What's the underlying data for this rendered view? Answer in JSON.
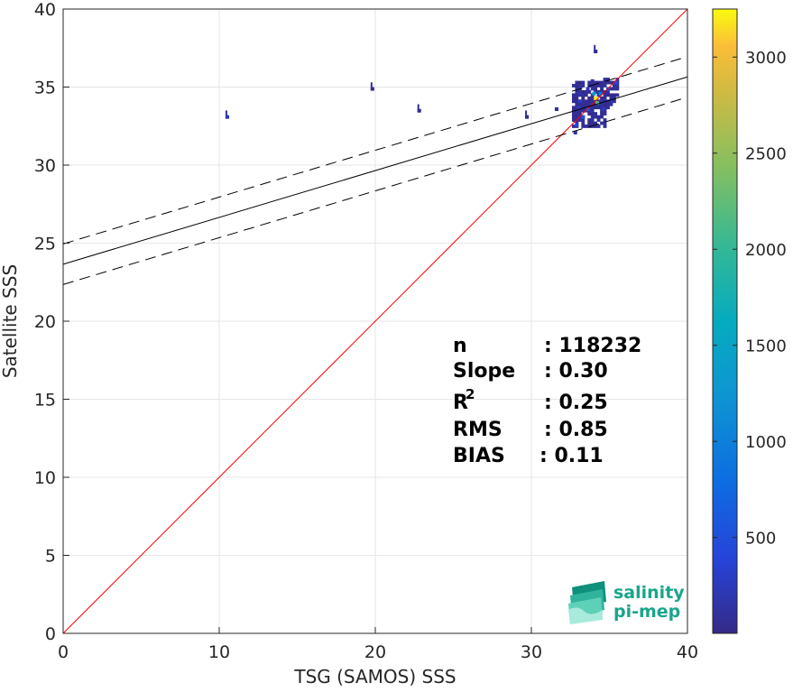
{
  "chart_data": {
    "type": "heatmap",
    "title": "",
    "xlabel": "TSG (SAMOS) SSS",
    "ylabel": "Satellite SSS",
    "xlim": [
      0,
      40
    ],
    "ylim": [
      0,
      40
    ],
    "xticks": [
      "0",
      "10",
      "20",
      "30",
      "40"
    ],
    "yticks": [
      "0",
      "5",
      "10",
      "15",
      "20",
      "25",
      "30",
      "35",
      "40"
    ],
    "grid": true,
    "colorbar": {
      "range": [
        1,
        3250
      ],
      "ticks": [
        "500",
        "1000",
        "1500",
        "2000",
        "2500",
        "3000"
      ],
      "colormap": "parula"
    },
    "lines": {
      "identity": {
        "slope": 1.0,
        "intercept": 0.0,
        "color": "#ff0000"
      },
      "regression": {
        "slope": 0.3,
        "intercept": 23.65,
        "color": "#000000"
      },
      "regression_upper": {
        "slope": 0.3,
        "intercept": 24.95,
        "color": "#000000",
        "dash": true
      },
      "regression_lower": {
        "slope": 0.3,
        "intercept": 22.35,
        "color": "#000000",
        "dash": true
      }
    },
    "density_clusters": [
      {
        "x": 34.0,
        "y": 34.2,
        "count": 3200
      },
      {
        "x": 34.1,
        "y": 33.9,
        "count": 2200
      },
      {
        "x": 33.9,
        "y": 34.5,
        "count": 1400
      },
      {
        "x": 34.3,
        "y": 34.5,
        "count": 900
      },
      {
        "x": 33.5,
        "y": 33.5,
        "count": 700
      },
      {
        "x": 33.2,
        "y": 33.0,
        "count": 550
      },
      {
        "x": 34.8,
        "y": 34.8,
        "count": 500
      },
      {
        "x": 35.3,
        "y": 35.2,
        "count": 450
      },
      {
        "x": 32.8,
        "y": 32.5,
        "count": 400
      },
      {
        "x": 33.0,
        "y": 34.0,
        "count": 300
      },
      {
        "x": 34.5,
        "y": 33.5,
        "count": 250
      },
      {
        "x": 32.9,
        "y": 33.6,
        "count": 220
      },
      {
        "x": 33.5,
        "y": 34.8,
        "count": 200
      },
      {
        "x": 35.0,
        "y": 34.0,
        "count": 150
      },
      {
        "x": 32.7,
        "y": 32.0,
        "count": 140
      },
      {
        "x": 33.8,
        "y": 35.3,
        "count": 120
      },
      {
        "x": 10.4,
        "y": 33.0,
        "count": 200
      },
      {
        "x": 19.7,
        "y": 34.8,
        "count": 60
      },
      {
        "x": 22.7,
        "y": 33.4,
        "count": 60
      },
      {
        "x": 29.6,
        "y": 33.0,
        "count": 80
      },
      {
        "x": 31.5,
        "y": 33.5,
        "count": 90
      },
      {
        "x": 34.0,
        "y": 37.2,
        "count": 80
      }
    ]
  },
  "stats": [
    {
      "label": "n",
      "value": ": 118232"
    },
    {
      "label": "Slope",
      "value": ": 0.30"
    },
    {
      "label": "R",
      "sup": "2",
      "value": ": 0.25"
    },
    {
      "label": "RMS",
      "value": ": 0.85"
    },
    {
      "label": "BIAS",
      "value": ": 0.11"
    }
  ],
  "logo": {
    "line1": "salinity",
    "line2": "pi-mep"
  },
  "colors": {
    "identity": "#ff0000",
    "regression": "#000000",
    "grid": "#e6e6e6",
    "logo": "#1aa58c"
  }
}
